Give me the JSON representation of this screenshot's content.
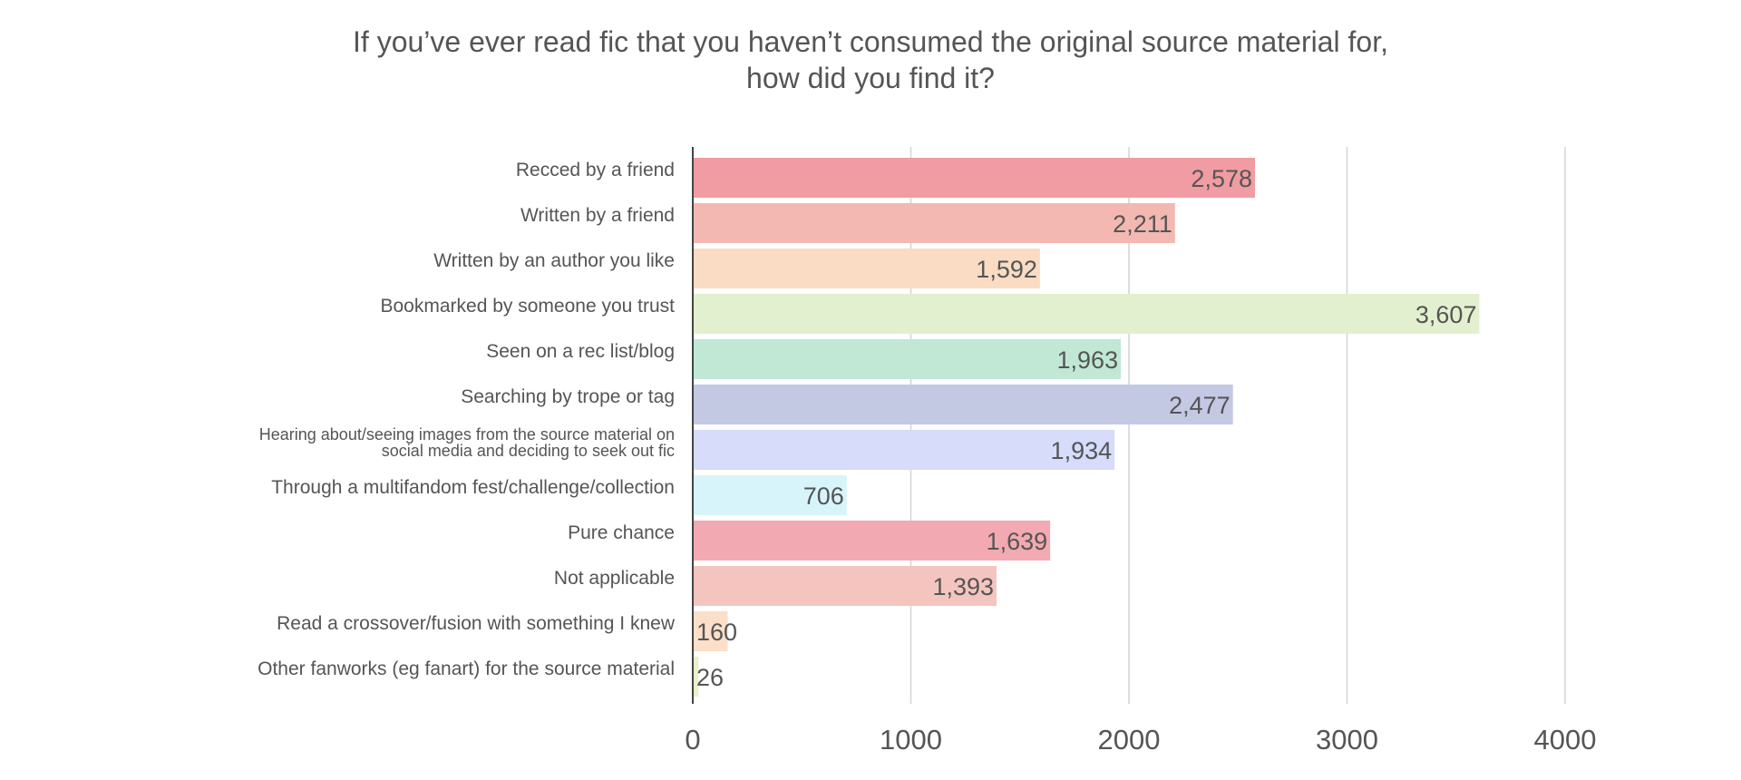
{
  "chart_data": {
    "type": "bar",
    "orientation": "horizontal",
    "title_lines": [
      "If you’ve ever read fic that you haven’t consumed the original source material for,",
      "how did you find it?"
    ],
    "categories": [
      "Recced by a friend",
      "Written by a friend",
      "Written by an author you like",
      "Bookmarked by someone you trust",
      "Seen on a rec list/blog",
      "Searching by trope or tag",
      "Hearing about/seeing images from the source material on social media and deciding to seek out fic",
      "Through a multifandom fest/challenge/collection",
      "Pure chance",
      "Not applicable",
      "Read a crossover/fusion with something I knew",
      "Other fanworks (eg fanart) for the source material"
    ],
    "category_label_lines": [
      [
        "Recced by a friend"
      ],
      [
        "Written by a friend"
      ],
      [
        "Written by an author you like"
      ],
      [
        "Bookmarked by someone you trust"
      ],
      [
        "Seen on a rec list/blog"
      ],
      [
        "Searching by trope or tag"
      ],
      [
        "Hearing about/seeing images from the source material on",
        "social media and deciding to seek out fic"
      ],
      [
        "Through a multifandom fest/challenge/collection"
      ],
      [
        "Pure chance"
      ],
      [
        "Not applicable"
      ],
      [
        "Read a crossover/fusion with something I knew"
      ],
      [
        "Other fanworks (eg fanart) for the source material"
      ]
    ],
    "values": [
      2578,
      2211,
      1592,
      3607,
      1963,
      2477,
      1934,
      706,
      1639,
      1393,
      160,
      26
    ],
    "value_labels": [
      "2,578",
      "2,211",
      "1,592",
      "3,607",
      "1,963",
      "2,477",
      "1,934",
      "706",
      "1,639",
      "1,393",
      "160",
      "26"
    ],
    "colors": [
      "#f09ca2",
      "#f3b8b1",
      "#f9dcc3",
      "#e3f0d0",
      "#c0e8d5",
      "#c3c9e3",
      "#d6dcfa",
      "#d8f4fb",
      "#f2a9b1",
      "#f4c5bf",
      "#fbdfc9",
      "#e9f2c8"
    ],
    "xlim": [
      0,
      4000
    ],
    "xticks": [
      0,
      1000,
      2000,
      3000,
      4000
    ],
    "xtick_labels": [
      "0",
      "1000",
      "2000",
      "3000",
      "4000"
    ],
    "grid": true,
    "xlabel": "",
    "ylabel": ""
  }
}
